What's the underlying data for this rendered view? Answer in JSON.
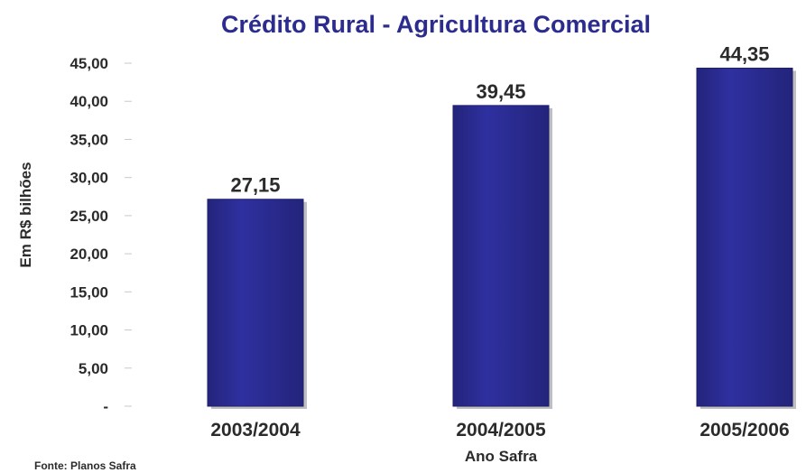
{
  "chart_data": {
    "type": "bar",
    "title": "Crédito Rural - Agricultura Comercial",
    "xlabel": "Ano Safra",
    "ylabel": "Em R$ bilhões",
    "categories": [
      "2003/2004",
      "2004/2005",
      "2005/2006"
    ],
    "values": [
      27.15,
      39.45,
      44.35
    ],
    "value_labels": [
      "27,15",
      "39,45",
      "44,35"
    ],
    "ylim": [
      0,
      45
    ],
    "yticks": [
      0,
      5,
      10,
      15,
      20,
      25,
      30,
      35,
      40,
      45
    ],
    "ytick_labels": [
      "-",
      "5,00",
      "10,00",
      "15,00",
      "20,00",
      "25,00",
      "30,00",
      "35,00",
      "40,00",
      "45,00"
    ],
    "grid": false,
    "legend": "none",
    "source": "Fonte: Planos Safra",
    "colors": {
      "bar": "#2b2c8e",
      "bar_edge": "#1d1e6e",
      "shadow": "#8a8a8a",
      "title": "#2b2c8e"
    }
  }
}
